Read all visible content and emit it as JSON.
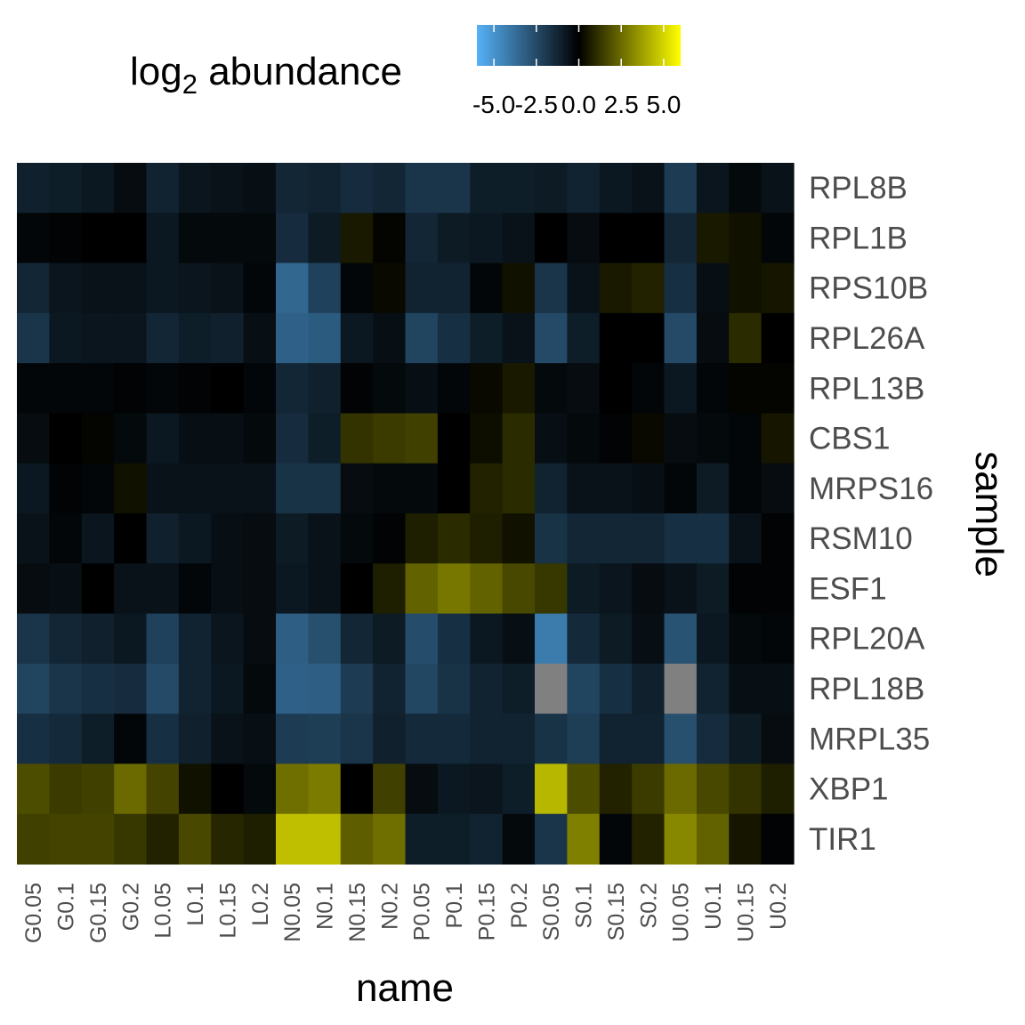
{
  "chart_data": {
    "type": "heatmap",
    "xlabel": "name",
    "ylabel": "sample",
    "legend": {
      "title_main": "log",
      "title_sub": "2",
      "title_rest": " abundance",
      "ticks": [
        -5.0,
        -2.5,
        0.0,
        2.5,
        5.0
      ],
      "tick_labels": [
        "-5.0",
        "-2.5",
        "0.0",
        "2.5",
        "5.0"
      ],
      "range": [
        -6,
        6
      ],
      "low_color": "#56b1f7",
      "mid_color": "#000000",
      "high_color": "#ffff00",
      "placement": "top"
    },
    "na_color": "#808080",
    "x": [
      "G0.05",
      "G0.1",
      "G0.15",
      "G0.2",
      "L0.05",
      "L0.1",
      "L0.15",
      "L0.2",
      "N0.05",
      "N0.1",
      "N0.15",
      "N0.2",
      "P0.05",
      "P0.1",
      "P0.15",
      "P0.2",
      "S0.05",
      "S0.1",
      "S0.15",
      "S0.2",
      "U0.05",
      "U0.1",
      "U0.15",
      "U0.2"
    ],
    "y": [
      "RPL8B",
      "RPL1B",
      "RPS10B",
      "RPL26A",
      "RPL13B",
      "CBS1",
      "MRPS16",
      "RSM10",
      "ESF1",
      "RPL20A",
      "RPL18B",
      "MRPL35",
      "XBP1",
      "TIR1"
    ],
    "values": [
      [
        -1.1,
        -1.0,
        -0.8,
        -0.4,
        -1.2,
        -0.7,
        -0.6,
        -0.5,
        -1.3,
        -1.2,
        -1.5,
        -1.3,
        -1.8,
        -1.8,
        -1.0,
        -1.0,
        -0.9,
        -1.2,
        -0.8,
        -0.6,
        -2.0,
        -0.7,
        -0.3,
        -0.6
      ],
      [
        -0.2,
        -0.1,
        0.0,
        0.0,
        -0.8,
        -0.3,
        -0.3,
        -0.3,
        -1.5,
        -0.9,
        0.6,
        0.1,
        -1.3,
        -0.9,
        -0.8,
        -0.6,
        0.0,
        -0.4,
        0.0,
        0.0,
        -1.3,
        0.6,
        0.4,
        -0.2
      ],
      [
        -1.3,
        -0.7,
        -0.6,
        -0.6,
        -0.8,
        -0.7,
        -0.6,
        -0.2,
        -3.5,
        -2.2,
        -0.2,
        0.2,
        -1.2,
        -1.2,
        -0.2,
        0.4,
        -1.8,
        -0.6,
        0.6,
        0.8,
        -1.6,
        -0.5,
        0.4,
        0.5
      ],
      [
        -1.8,
        -0.8,
        -0.7,
        -0.7,
        -1.3,
        -1.0,
        -1.1,
        -0.5,
        -3.3,
        -3.1,
        -0.8,
        -0.5,
        -2.3,
        -1.6,
        -1.0,
        -0.6,
        -2.5,
        -1.0,
        0.0,
        0.0,
        -2.5,
        -0.4,
        1.0,
        0.0
      ],
      [
        -0.2,
        -0.2,
        -0.2,
        -0.1,
        -0.2,
        -0.1,
        0.0,
        -0.2,
        -1.3,
        -1.1,
        -0.1,
        -0.3,
        -0.5,
        -0.2,
        0.2,
        0.6,
        -0.3,
        -0.4,
        0.0,
        -0.2,
        -0.8,
        -0.2,
        0.1,
        0.1
      ],
      [
        -0.4,
        0.0,
        0.1,
        -0.3,
        -0.8,
        -0.5,
        -0.5,
        -0.3,
        -1.5,
        -1.0,
        1.2,
        1.4,
        1.5,
        0.0,
        0.3,
        1.0,
        -0.5,
        -0.3,
        -0.1,
        0.2,
        -0.4,
        -0.3,
        -0.2,
        0.5
      ],
      [
        -0.8,
        -0.1,
        -0.2,
        0.4,
        -0.6,
        -0.6,
        -0.6,
        -0.6,
        -1.7,
        -1.7,
        -0.4,
        -0.3,
        -0.3,
        0.0,
        0.8,
        1.0,
        -1.2,
        -0.6,
        -0.6,
        -0.5,
        -0.2,
        -0.9,
        -0.2,
        -0.4
      ],
      [
        -0.6,
        -0.2,
        -0.7,
        0.0,
        -1.1,
        -0.8,
        -0.5,
        -0.4,
        -0.9,
        -0.6,
        -0.3,
        -0.1,
        0.7,
        1.0,
        0.7,
        0.4,
        -1.7,
        -1.3,
        -1.3,
        -1.3,
        -1.6,
        -1.6,
        -0.6,
        -0.1
      ],
      [
        -0.4,
        -0.5,
        0.0,
        -0.6,
        -0.6,
        -0.2,
        -0.5,
        -0.4,
        -0.8,
        -0.6,
        0.0,
        0.7,
        2.3,
        2.8,
        2.3,
        1.7,
        1.3,
        -0.9,
        -0.7,
        -0.4,
        -0.6,
        -0.9,
        -0.1,
        -0.1
      ],
      [
        -1.8,
        -1.3,
        -1.1,
        -0.8,
        -2.2,
        -1.2,
        -0.7,
        -0.4,
        -3.2,
        -2.7,
        -1.3,
        -0.9,
        -2.6,
        -1.6,
        -0.8,
        -0.5,
        -4.2,
        -1.4,
        -0.9,
        -0.5,
        -2.8,
        -0.8,
        -0.3,
        -0.2
      ],
      [
        -2.3,
        -1.8,
        -1.6,
        -1.5,
        -2.5,
        -1.2,
        -0.8,
        -0.3,
        -3.3,
        -3.2,
        -2.0,
        -1.2,
        -2.4,
        -1.7,
        -1.2,
        -1.0,
        null,
        -2.3,
        -1.6,
        -1.1,
        null,
        -1.2,
        -0.5,
        -0.5
      ],
      [
        -1.6,
        -1.4,
        -1.0,
        -0.2,
        -1.6,
        -1.1,
        -0.6,
        -0.5,
        -2.0,
        -2.1,
        -1.8,
        -1.1,
        -1.4,
        -1.4,
        -1.2,
        -1.2,
        -1.7,
        -2.1,
        -1.2,
        -1.2,
        -2.7,
        -1.5,
        -0.9,
        -0.4
      ],
      [
        1.8,
        1.4,
        1.5,
        2.5,
        1.6,
        0.4,
        0.0,
        -0.3,
        2.6,
        2.9,
        0.0,
        1.5,
        -0.4,
        -0.8,
        -0.7,
        -1.0,
        4.3,
        1.8,
        0.8,
        1.4,
        2.5,
        1.7,
        1.2,
        0.7
      ],
      [
        1.5,
        1.6,
        1.6,
        1.3,
        0.8,
        1.7,
        0.9,
        0.7,
        4.5,
        4.5,
        2.2,
        2.6,
        -1.0,
        -1.0,
        -1.2,
        -0.3,
        -1.8,
        3.0,
        -0.2,
        0.8,
        3.2,
        2.3,
        0.5,
        -0.1
      ]
    ]
  }
}
